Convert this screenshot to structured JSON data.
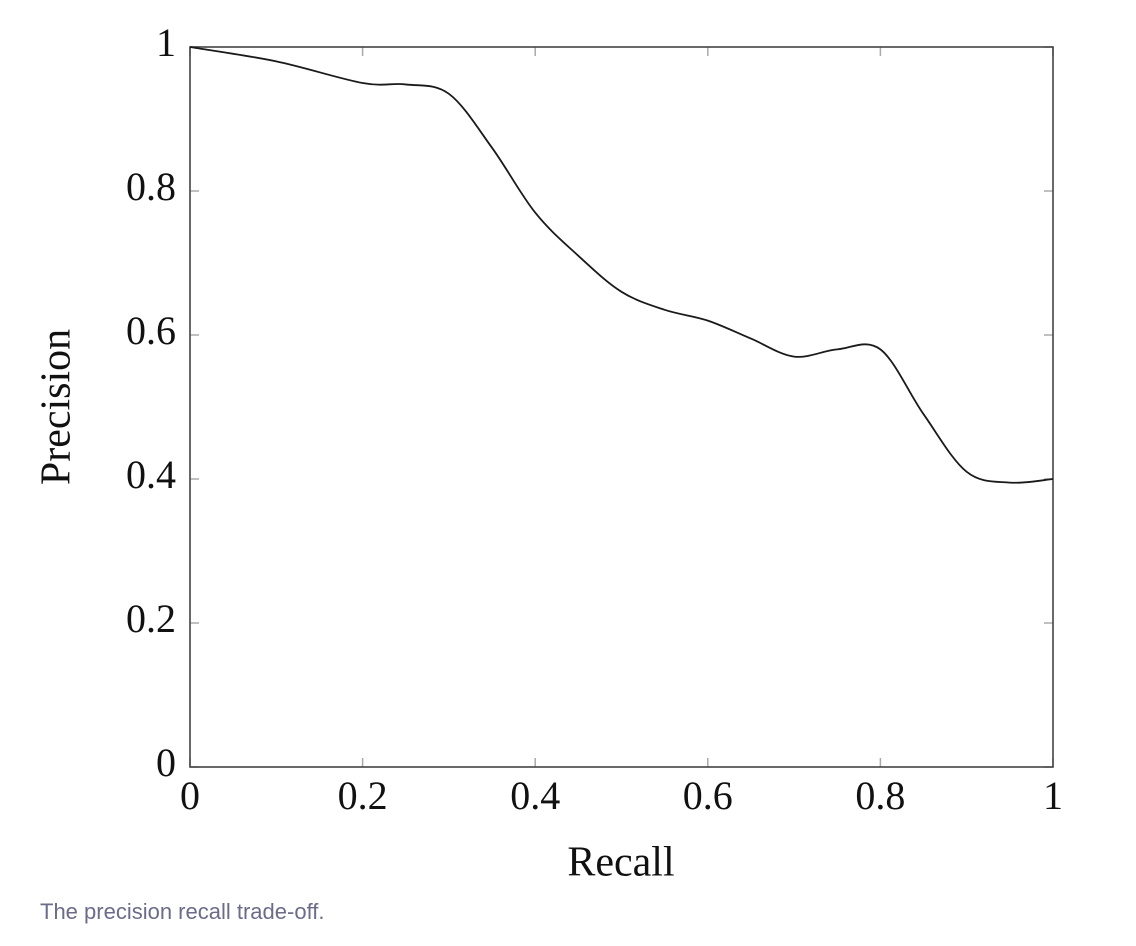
{
  "chart_data": {
    "type": "line",
    "x_label": "Recall",
    "y_label": "Precision",
    "caption": "The precision recall trade-off.",
    "x": [
      0,
      0.1,
      0.2,
      0.25,
      0.3,
      0.35,
      0.4,
      0.45,
      0.5,
      0.55,
      0.6,
      0.65,
      0.7,
      0.75,
      0.8,
      0.85,
      0.9,
      0.95,
      1.0
    ],
    "values": [
      1.0,
      0.98,
      0.95,
      0.948,
      0.935,
      0.86,
      0.77,
      0.71,
      0.66,
      0.635,
      0.62,
      0.595,
      0.57,
      0.58,
      0.58,
      0.49,
      0.41,
      0.395,
      0.4
    ],
    "color": "#1a1a1a",
    "xlim": [
      0,
      1
    ],
    "ylim": [
      0,
      1
    ],
    "xticks": [
      0,
      0.2,
      0.4,
      0.6,
      0.8,
      1
    ],
    "yticks": [
      0,
      0.2,
      0.4,
      0.6,
      0.8,
      1
    ]
  }
}
